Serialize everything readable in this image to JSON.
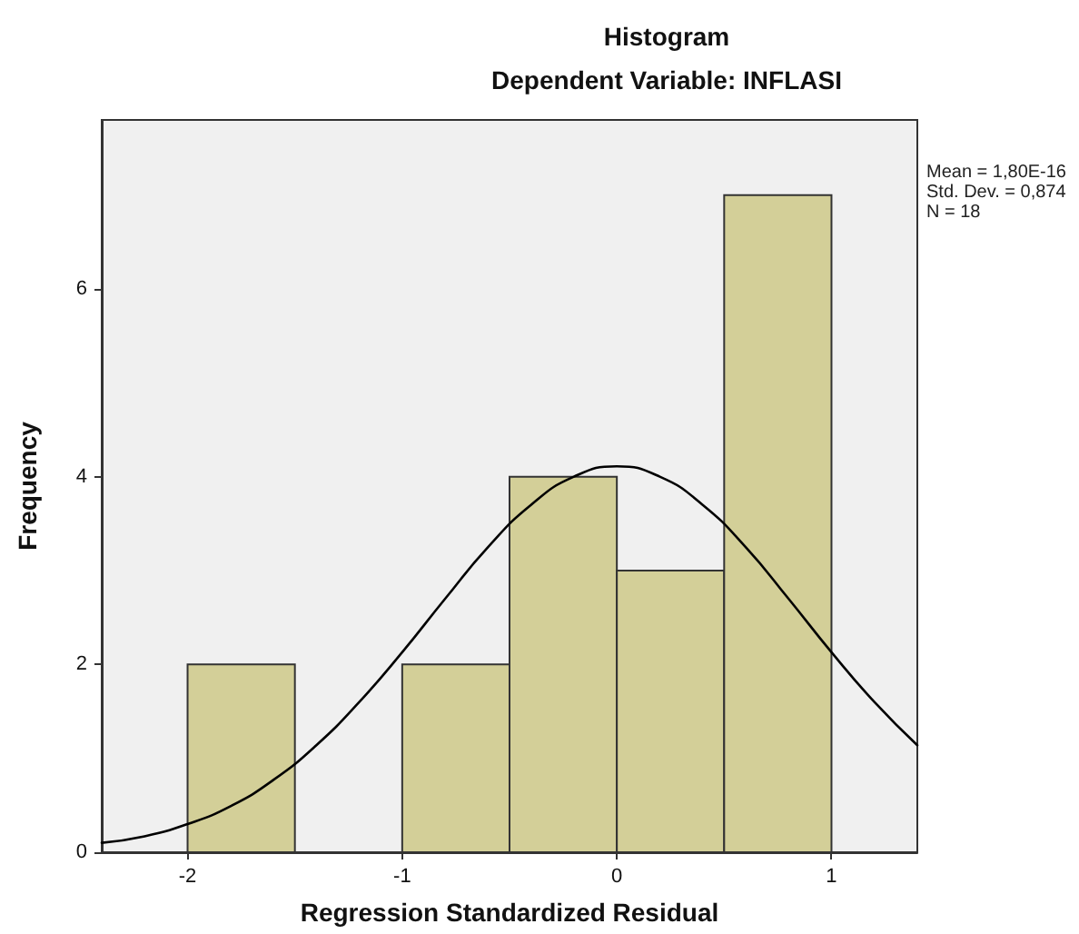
{
  "chart_data": {
    "type": "histogram",
    "title": "Histogram",
    "subtitle": "Dependent Variable: INFLASI",
    "xlabel": "Regression Standardized Residual",
    "ylabel": "Frequency",
    "bins": [
      -2,
      -1.5,
      -1,
      -0.5,
      0,
      0.5,
      1
    ],
    "values": [
      2,
      0,
      2,
      4,
      3,
      7
    ],
    "color": "#d3cf98",
    "series": [
      {
        "type": "line",
        "color": "#000000",
        "x": [
          -2.4,
          -2.2,
          -2.0,
          -1.8,
          -1.6,
          -1.4,
          -1.2,
          -1.0,
          -0.8,
          -0.6,
          -0.4,
          -0.2,
          0,
          0.2,
          0.4,
          0.6,
          0.8,
          1.0,
          1.2,
          1.4
        ],
        "values": [
          0.1,
          0.17,
          0.3,
          0.49,
          0.77,
          1.14,
          1.6,
          2.13,
          2.7,
          3.25,
          3.7,
          4.0,
          4.11,
          4.0,
          3.7,
          3.25,
          2.7,
          2.13,
          1.6,
          1.14
        ]
      }
    ],
    "xlim": [
      -2.4,
      1.4
    ],
    "xticks": [
      -2,
      -1,
      0,
      1
    ],
    "ylim": [
      0,
      7.8
    ],
    "yticks": [
      0,
      2,
      4,
      6
    ],
    "grid": false,
    "marker": "none",
    "line_style": "solid",
    "annotations": [
      "Mean = 1,80E-16",
      "Std. Dev. = 0,874",
      "N = 18"
    ]
  }
}
